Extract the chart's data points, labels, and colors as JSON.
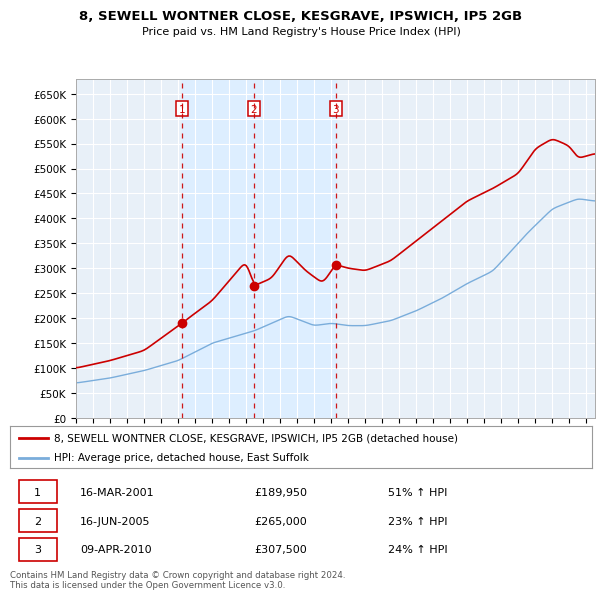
{
  "title": "8, SEWELL WONTNER CLOSE, KESGRAVE, IPSWICH, IP5 2GB",
  "subtitle": "Price paid vs. HM Land Registry's House Price Index (HPI)",
  "yticks": [
    0,
    50000,
    100000,
    150000,
    200000,
    250000,
    300000,
    350000,
    400000,
    450000,
    500000,
    550000,
    600000,
    650000
  ],
  "xmin": 1995.0,
  "xmax": 2025.5,
  "ymin": 0,
  "ymax": 680000,
  "sale_dates": [
    2001.21,
    2005.46,
    2010.27
  ],
  "sale_prices": [
    189950,
    265000,
    307500
  ],
  "sale_labels": [
    "1",
    "2",
    "3"
  ],
  "red_line_color": "#cc0000",
  "blue_line_color": "#7aaddb",
  "shade_color": "#ddeeff",
  "dashed_line_color": "#cc0000",
  "grid_color": "#cccccc",
  "legend_entries": [
    "8, SEWELL WONTNER CLOSE, KESGRAVE, IPSWICH, IP5 2GB (detached house)",
    "HPI: Average price, detached house, East Suffolk"
  ],
  "table_rows": [
    [
      "1",
      "16-MAR-2001",
      "£189,950",
      "51% ↑ HPI"
    ],
    [
      "2",
      "16-JUN-2005",
      "£265,000",
      "23% ↑ HPI"
    ],
    [
      "3",
      "09-APR-2010",
      "£307,500",
      "24% ↑ HPI"
    ]
  ],
  "footnote": "Contains HM Land Registry data © Crown copyright and database right 2024.\nThis data is licensed under the Open Government Licence v3.0.",
  "background_color": "#ffffff"
}
